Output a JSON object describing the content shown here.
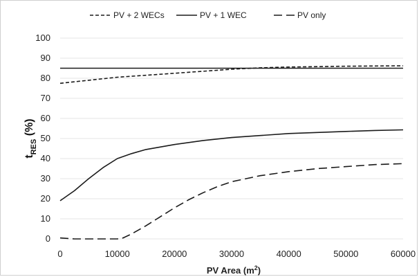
{
  "chart_data": {
    "type": "line",
    "xlabel": {
      "prefix": "PV Area (m",
      "sup": "2",
      "suffix": ")"
    },
    "ylabel": {
      "main": "t",
      "sub": "RES",
      "suffix": " (%)"
    },
    "xlim": [
      0,
      60000
    ],
    "ylim": [
      0,
      100
    ],
    "xticks": [
      0,
      10000,
      20000,
      30000,
      40000,
      50000,
      60000
    ],
    "yticks": [
      0,
      10,
      20,
      30,
      40,
      50,
      60,
      70,
      80,
      90,
      100
    ],
    "grid": true,
    "legend_position": "top",
    "series": [
      {
        "name": "PV + 2 WECs",
        "style": "short-dash",
        "color": "#1a1a1a",
        "points": [
          [
            0,
            77.5
          ],
          [
            5000,
            79
          ],
          [
            10000,
            80.5
          ],
          [
            15000,
            81.5
          ],
          [
            20000,
            82.5
          ],
          [
            25000,
            83.5
          ],
          [
            30000,
            84.5
          ],
          [
            35000,
            85.2
          ],
          [
            40000,
            85.6
          ],
          [
            45000,
            85.8
          ],
          [
            50000,
            86
          ],
          [
            55000,
            86.1
          ],
          [
            60000,
            86.2
          ]
        ]
      },
      {
        "name": "PV + 1 WEC",
        "style": "solid",
        "color": "#1a1a1a",
        "points": [
          [
            0,
            85
          ],
          [
            10000,
            85
          ],
          [
            20000,
            85
          ],
          [
            30000,
            85
          ],
          [
            40000,
            85
          ],
          [
            50000,
            85
          ],
          [
            60000,
            85
          ]
        ]
      },
      {
        "name": "PV + 1 WEC",
        "style": "solid",
        "color": "#1a1a1a",
        "points": [
          [
            0,
            19
          ],
          [
            2500,
            24
          ],
          [
            5000,
            30
          ],
          [
            7500,
            35.5
          ],
          [
            10000,
            40
          ],
          [
            12500,
            42.5
          ],
          [
            15000,
            44.5
          ],
          [
            20000,
            47
          ],
          [
            25000,
            49
          ],
          [
            30000,
            50.5
          ],
          [
            35000,
            51.5
          ],
          [
            40000,
            52.5
          ],
          [
            45000,
            53
          ],
          [
            50000,
            53.5
          ],
          [
            55000,
            54
          ],
          [
            60000,
            54.3
          ]
        ]
      },
      {
        "name": "PV only",
        "style": "long-dash",
        "color": "#1a1a1a",
        "points": [
          [
            0,
            0.5
          ],
          [
            2500,
            0
          ],
          [
            5000,
            0
          ],
          [
            7500,
            0
          ],
          [
            10000,
            0
          ],
          [
            11000,
            0.5
          ],
          [
            12500,
            2.5
          ],
          [
            15000,
            6.5
          ],
          [
            17500,
            11
          ],
          [
            20000,
            15.5
          ],
          [
            22500,
            19.5
          ],
          [
            25000,
            23
          ],
          [
            27500,
            26
          ],
          [
            30000,
            28.5
          ],
          [
            35000,
            31.5
          ],
          [
            40000,
            33.5
          ],
          [
            45000,
            35
          ],
          [
            50000,
            36
          ],
          [
            55000,
            37
          ],
          [
            60000,
            37.5
          ]
        ]
      }
    ],
    "legend": [
      {
        "label": "PV + 2 WECs",
        "style": "short-dash"
      },
      {
        "label": "PV + 1 WEC",
        "style": "solid"
      },
      {
        "label": "PV only",
        "style": "long-dash"
      }
    ]
  }
}
